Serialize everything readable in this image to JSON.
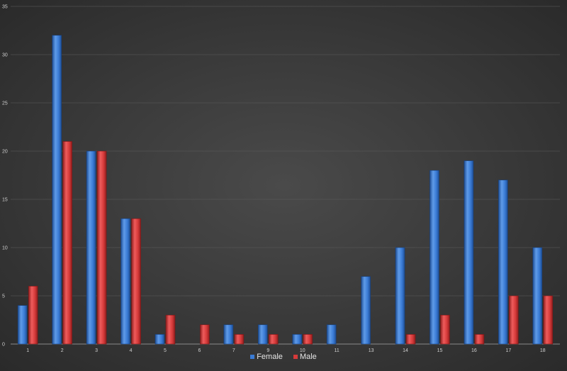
{
  "chart_data": {
    "type": "bar",
    "categories": [
      "1",
      "2",
      "3",
      "4",
      "5",
      "6",
      "7",
      "9",
      "10",
      "11",
      "13",
      "14",
      "15",
      "16",
      "17",
      "18"
    ],
    "series": [
      {
        "name": "Female",
        "color": "#3a7bd5",
        "values": [
          4,
          32,
          20,
          13,
          1,
          0,
          2,
          2,
          1,
          2,
          7,
          10,
          18,
          19,
          17,
          10
        ]
      },
      {
        "name": "Male",
        "color": "#d63a3a",
        "values": [
          6,
          21,
          20,
          13,
          3,
          2,
          1,
          1,
          1,
          0,
          0,
          1,
          3,
          1,
          5,
          5
        ]
      }
    ],
    "yticks": [
      "0",
      "5",
      "10",
      "15",
      "20",
      "25",
      "30",
      "35"
    ],
    "ylim": [
      0,
      35
    ],
    "grid": true,
    "legend_position": "bottom"
  }
}
